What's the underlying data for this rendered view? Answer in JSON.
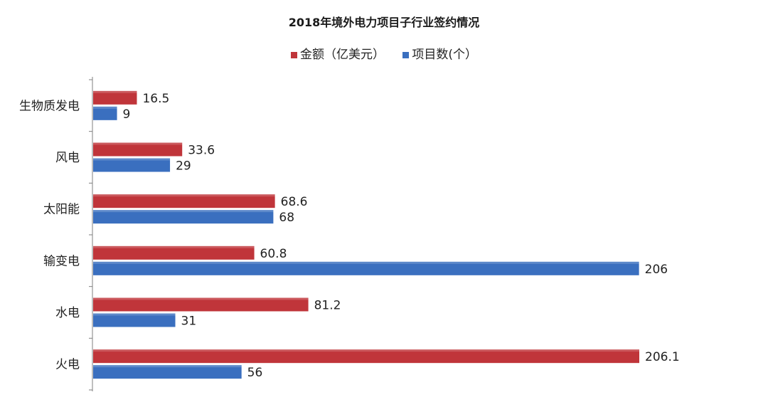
{
  "chart_data": {
    "type": "bar",
    "orientation": "horizontal",
    "title": "2018年境外电力项目子行业签约情况",
    "categories": [
      "生物质发电",
      "风电",
      "太阳能",
      "输变电",
      "水电",
      "火电"
    ],
    "series": [
      {
        "name": "金额（亿美元）",
        "color": "#C0353A",
        "values": [
          16.5,
          33.6,
          68.6,
          60.8,
          81.2,
          206.1
        ],
        "labels": [
          "16.5",
          "33.6",
          "68.6",
          "60.8",
          "81.2",
          "206.1"
        ]
      },
      {
        "name": "项目数(个）",
        "color": "#3A6FBF",
        "values": [
          9,
          29,
          68,
          206,
          31,
          56
        ],
        "labels": [
          "9",
          "29",
          "68",
          "206",
          "31",
          "56"
        ]
      }
    ],
    "xlim": [
      0,
      206.1
    ],
    "grid": false,
    "legend_position": "top"
  }
}
